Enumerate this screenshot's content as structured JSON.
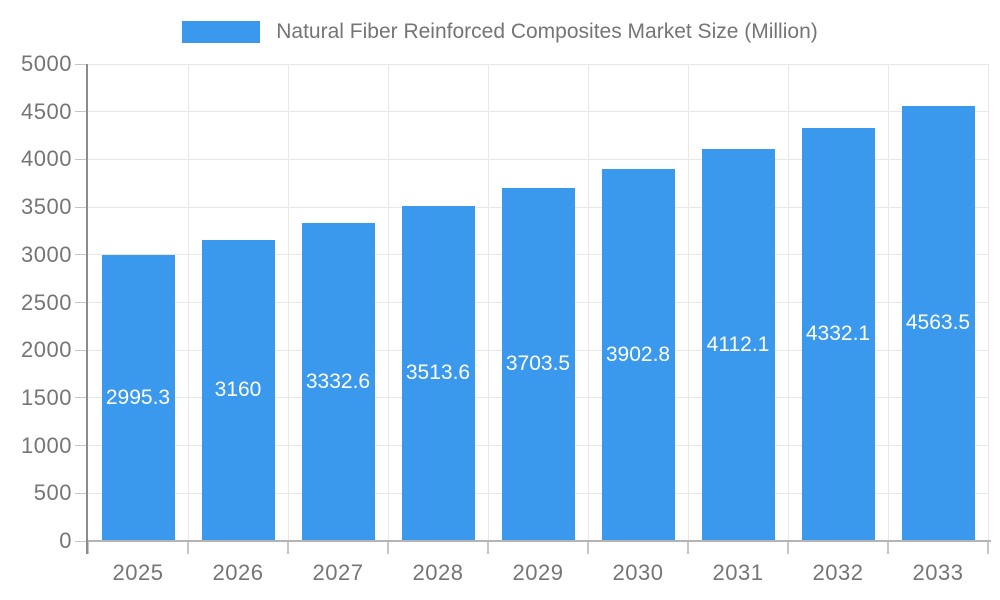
{
  "legend": {
    "label": "Natural Fiber Reinforced Composites Market Size (Million)"
  },
  "chart_data": {
    "type": "bar",
    "title": "Natural Fiber Reinforced Composites Market Size (Million)",
    "categories": [
      "2025",
      "2026",
      "2027",
      "2028",
      "2029",
      "2030",
      "2031",
      "2032",
      "2033"
    ],
    "values": [
      2995.3,
      3160,
      3332.6,
      3513.6,
      3703.5,
      3902.8,
      4112.1,
      4332.1,
      4563.5
    ],
    "value_labels": [
      "2995.3",
      "3160",
      "3332.6",
      "3513.6",
      "3703.5",
      "3902.8",
      "4112.1",
      "4332.1",
      "4563.5"
    ],
    "xlabel": "",
    "ylabel": "",
    "ylim": [
      0,
      5000
    ],
    "yticks": [
      0,
      500,
      1000,
      1500,
      2000,
      2500,
      3000,
      3500,
      4000,
      4500,
      5000
    ],
    "grid": true,
    "legend_position": "top",
    "colors": {
      "bar": "#3A99EC",
      "value_label": "#FFFFFF",
      "axis_label": "#757575",
      "legend_text": "#757575",
      "gridline": "#E8E8E8",
      "y_axis_line": "#8C8C8C",
      "x_axis_line": "#B4B4B4",
      "tick": "#C6C6C6",
      "background": "#FFFFFF"
    }
  }
}
